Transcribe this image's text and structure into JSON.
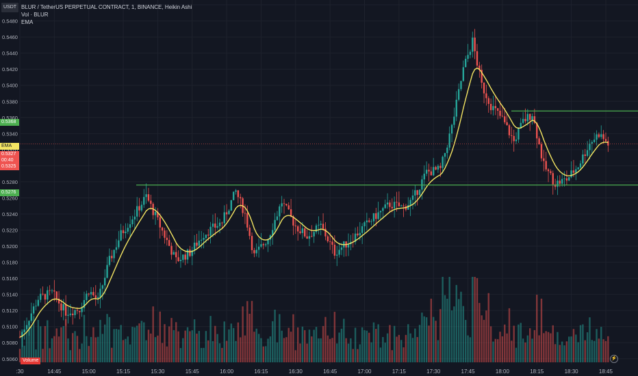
{
  "header": {
    "symbol_badge": "USDT",
    "title": "BLUR / TetherUS PERPETUAL CONTRACT, 1, BINANCE, Heikin Ashi",
    "vol_legend": "Vol · BLUR",
    "ema_legend": "EMA"
  },
  "price_tags": {
    "level_high": "0.5368",
    "ema_tag": "EMA",
    "last_price": "0.5327",
    "countdown": "00:40",
    "ema_value": "0.5325",
    "level_low": "0.5276"
  },
  "volume_label": "Volume",
  "flash_icon": "lightning-icon",
  "colors": {
    "background": "#131722",
    "up": "#26a69a",
    "down": "#ef5350",
    "ema": "#f5e663",
    "levels": "#4caf50",
    "last_price_line": "#ef5350"
  },
  "chart_data": {
    "type": "candlestick",
    "style": "Heikin Ashi",
    "timeframe": "1 minute",
    "y_axis": {
      "ticks": [
        "0.5500",
        "0.5480",
        "0.5460",
        "0.5440",
        "0.5420",
        "0.5400",
        "0.5380",
        "0.5360",
        "0.5340",
        "0.5320",
        "0.5300",
        "0.5280",
        "0.5260",
        "0.5240",
        "0.5220",
        "0.5200",
        "0.5180",
        "0.5160",
        "0.5140",
        "0.5120",
        "0.5100",
        "0.5080",
        "0.5060"
      ],
      "range": [
        0.5053,
        0.5506
      ]
    },
    "x_axis": {
      "ticks": [
        ":30",
        "14:45",
        "15:00",
        "15:15",
        "15:30",
        "15:45",
        "16:00",
        "16:15",
        "16:30",
        "16:45",
        "17:00",
        "17:15",
        "17:30",
        "17:45",
        "18:00",
        "18:15",
        "18:30",
        "18:45"
      ]
    },
    "horizontal_levels": [
      0.5368,
      0.5276
    ],
    "last_price": 0.5327,
    "anchors": [
      {
        "t": "14:30",
        "p": 0.5087
      },
      {
        "t": "14:38",
        "p": 0.5135
      },
      {
        "t": "14:44",
        "p": 0.5142
      },
      {
        "t": "14:50",
        "p": 0.5118
      },
      {
        "t": "14:56",
        "p": 0.5122
      },
      {
        "t": "15:00",
        "p": 0.5145
      },
      {
        "t": "15:04",
        "p": 0.5132
      },
      {
        "t": "15:09",
        "p": 0.5182
      },
      {
        "t": "15:14",
        "p": 0.5215
      },
      {
        "t": "15:20",
        "p": 0.524
      },
      {
        "t": "15:25",
        "p": 0.5262
      },
      {
        "t": "15:31",
        "p": 0.5225
      },
      {
        "t": "15:38",
        "p": 0.5182
      },
      {
        "t": "15:44",
        "p": 0.5192
      },
      {
        "t": "15:50",
        "p": 0.5215
      },
      {
        "t": "15:58",
        "p": 0.523
      },
      {
        "t": "16:04",
        "p": 0.5268
      },
      {
        "t": "16:08",
        "p": 0.524
      },
      {
        "t": "16:12",
        "p": 0.5188
      },
      {
        "t": "16:18",
        "p": 0.521
      },
      {
        "t": "16:24",
        "p": 0.5255
      },
      {
        "t": "16:30",
        "p": 0.5225
      },
      {
        "t": "16:35",
        "p": 0.5212
      },
      {
        "t": "16:41",
        "p": 0.5225
      },
      {
        "t": "16:47",
        "p": 0.5192
      },
      {
        "t": "16:53",
        "p": 0.5205
      },
      {
        "t": "16:59",
        "p": 0.5222
      },
      {
        "t": "17:05",
        "p": 0.5238
      },
      {
        "t": "17:11",
        "p": 0.5252
      },
      {
        "t": "17:17",
        "p": 0.5248
      },
      {
        "t": "17:21",
        "p": 0.5258
      },
      {
        "t": "17:27",
        "p": 0.5292
      },
      {
        "t": "17:33",
        "p": 0.5295
      },
      {
        "t": "17:38",
        "p": 0.5348
      },
      {
        "t": "17:43",
        "p": 0.542
      },
      {
        "t": "17:47",
        "p": 0.5455
      },
      {
        "t": "17:51",
        "p": 0.54
      },
      {
        "t": "17:55",
        "p": 0.5375
      },
      {
        "t": "18:00",
        "p": 0.5358
      },
      {
        "t": "18:05",
        "p": 0.533
      },
      {
        "t": "18:09",
        "p": 0.5355
      },
      {
        "t": "18:13",
        "p": 0.5365
      },
      {
        "t": "18:18",
        "p": 0.53
      },
      {
        "t": "18:23",
        "p": 0.5278
      },
      {
        "t": "18:28",
        "p": 0.5283
      },
      {
        "t": "18:33",
        "p": 0.53
      },
      {
        "t": "18:38",
        "p": 0.5328
      },
      {
        "t": "18:42",
        "p": 0.534
      },
      {
        "t": "18:46",
        "p": 0.5327
      }
    ]
  }
}
